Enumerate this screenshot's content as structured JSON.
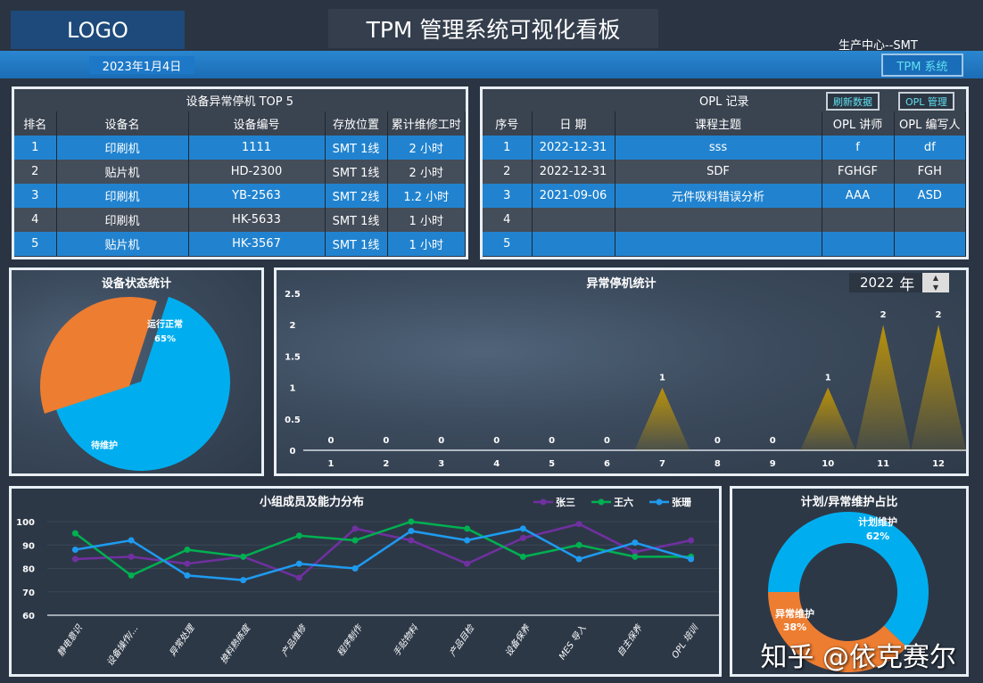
{
  "header": {
    "logo": "LOGO",
    "title": "TPM 管理系统可视化看板",
    "date": "2023年1月4日",
    "center": "生产中心--SMT",
    "tpm_button": "TPM 系统"
  },
  "top5": {
    "title": "设备异常停机 TOP 5",
    "columns": [
      "排名",
      "设备名",
      "设备编号",
      "存放位置",
      "累计维修工时"
    ],
    "rows": [
      [
        "1",
        "印刷机",
        "1111",
        "SMT 1线",
        "2 小时"
      ],
      [
        "2",
        "贴片机",
        "HD-2300",
        "SMT 1线",
        "2 小时"
      ],
      [
        "3",
        "印刷机",
        "YB-2563",
        "SMT 2线",
        "1.2 小时"
      ],
      [
        "4",
        "印刷机",
        "HK-5633",
        "SMT 1线",
        "1 小时"
      ],
      [
        "5",
        "贴片机",
        "HK-3567",
        "SMT 1线",
        "1 小时"
      ]
    ]
  },
  "opl": {
    "title": "OPL 记录",
    "refresh_button": "刷新数据",
    "manage_button": "OPL 管理",
    "columns": [
      "序号",
      "日 期",
      "课程主题",
      "OPL 讲师",
      "OPL 编写人"
    ],
    "rows": [
      [
        "1",
        "2022-12-31",
        "sss",
        "f",
        "df"
      ],
      [
        "2",
        "2022-12-31",
        "SDF",
        "FGHGF",
        "FGH"
      ],
      [
        "3",
        "2021-09-06",
        "元件吸料错误分析",
        "AAA",
        "ASD"
      ],
      [
        "4",
        "",
        "",
        "",
        ""
      ],
      [
        "5",
        "",
        "",
        "",
        ""
      ]
    ]
  },
  "colors": {
    "blue": "#00aeef",
    "orange": "#ed7d31",
    "gold": "#b8900a",
    "purple": "#7030a0",
    "green": "#00b050",
    "lineblue": "#1e9bf0"
  },
  "chart_data": [
    {
      "type": "pie",
      "title": "设备状态统计",
      "slices": [
        {
          "label": "运行正常",
          "value": 65,
          "display": "65%"
        },
        {
          "label": "待维护",
          "value": 35
        }
      ]
    },
    {
      "type": "area",
      "title": "异常停机统计",
      "year": "2022",
      "year_unit": "年",
      "categories": [
        "1",
        "2",
        "3",
        "4",
        "5",
        "6",
        "7",
        "8",
        "9",
        "10",
        "11",
        "12"
      ],
      "values": [
        0,
        0,
        0,
        0,
        0,
        0,
        1,
        0,
        0,
        1,
        2,
        2
      ],
      "ylim": [
        0,
        2.5
      ],
      "yticks": [
        "0",
        "0.5",
        "1",
        "1.5",
        "2",
        "2.5"
      ]
    },
    {
      "type": "line",
      "title": "小组成员及能力分布",
      "legend": "top-right",
      "ylim": [
        60,
        100
      ],
      "yticks": [
        "60",
        "70",
        "80",
        "90",
        "100"
      ],
      "categories": [
        "静电意识",
        "设备操作/...",
        "异常处理",
        "换料熟练度",
        "产品维修",
        "程序制作",
        "手贴物料",
        "产品目检",
        "设备保养",
        "MES 导入",
        "自主保养",
        "OPL 培训"
      ],
      "series": [
        {
          "name": "张三",
          "values": [
            84,
            85,
            82,
            85,
            76,
            97,
            92,
            82,
            93,
            99,
            87,
            92
          ]
        },
        {
          "name": "王六",
          "values": [
            95,
            77,
            88,
            85,
            94,
            92,
            100,
            97,
            85,
            90,
            85,
            85
          ]
        },
        {
          "name": "张珊",
          "values": [
            88,
            92,
            77,
            75,
            82,
            80,
            96,
            92,
            97,
            84,
            91,
            84
          ]
        }
      ]
    },
    {
      "type": "pie",
      "title": "计划/异常维护占比",
      "slices": [
        {
          "label": "计划维护",
          "value": 62,
          "display": "62%"
        },
        {
          "label": "异常维护",
          "value": 38,
          "display": "38%"
        }
      ]
    }
  ],
  "watermark": "知乎 @依克赛尔"
}
